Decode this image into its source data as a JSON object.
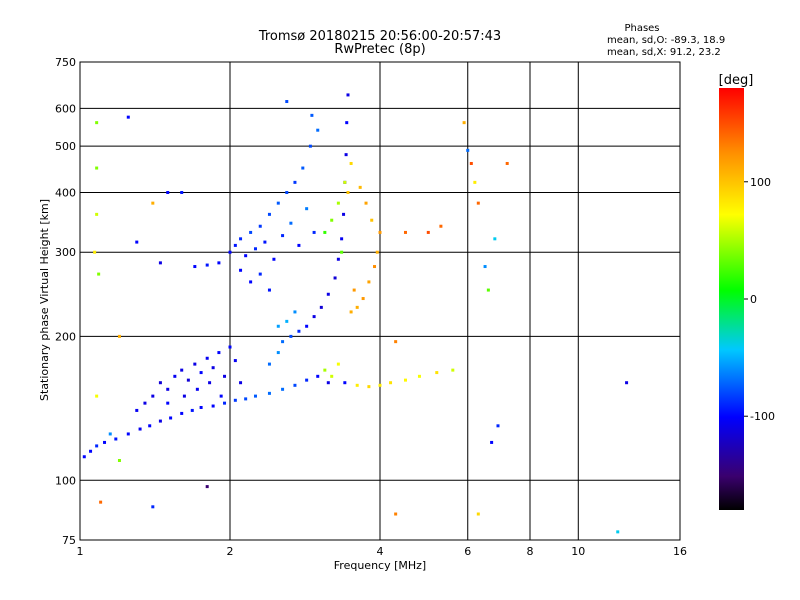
{
  "chart_data": {
    "type": "scatter",
    "title": "Tromsø 20180215 20:56:00-20:57:43",
    "subtitle": "RwPretec (8p)",
    "xlabel": "Frequency [MHz]",
    "ylabel": "Stationary phase Virtual Height [km]",
    "x_scale": "log",
    "y_scale": "log",
    "xlim": [
      1,
      16
    ],
    "ylim": [
      75,
      750
    ],
    "x_ticks": [
      1,
      2,
      4,
      6,
      8,
      10,
      16
    ],
    "y_ticks": [
      75,
      100,
      200,
      300,
      400,
      500,
      600,
      750
    ],
    "x_grid": [
      2,
      4,
      6,
      8,
      10
    ],
    "y_grid": [
      100,
      200,
      300,
      400,
      500,
      600
    ],
    "grid": true,
    "stats": {
      "title": "Phases",
      "line_o": "mean, sd,O: -89.3, 18.9",
      "line_x": "mean, sd,X:  91.2, 23.2"
    },
    "colorbar": {
      "label": "[deg]",
      "ticks": [
        100,
        0,
        -100
      ],
      "range": [
        -180,
        180
      ],
      "colormap": "rainbow"
    },
    "points": [
      {
        "f": 1.02,
        "h": 112,
        "phase": -100
      },
      {
        "f": 1.05,
        "h": 115,
        "phase": -100
      },
      {
        "f": 1.08,
        "h": 118,
        "phase": -90
      },
      {
        "f": 1.12,
        "h": 120,
        "phase": -100
      },
      {
        "f": 1.18,
        "h": 122,
        "phase": -95
      },
      {
        "f": 1.25,
        "h": 125,
        "phase": -100
      },
      {
        "f": 1.32,
        "h": 128,
        "phase": -105
      },
      {
        "f": 1.38,
        "h": 130,
        "phase": -100
      },
      {
        "f": 1.45,
        "h": 133,
        "phase": -110
      },
      {
        "f": 1.52,
        "h": 135,
        "phase": -100
      },
      {
        "f": 1.6,
        "h": 138,
        "phase": -100
      },
      {
        "f": 1.68,
        "h": 140,
        "phase": -95
      },
      {
        "f": 1.75,
        "h": 142,
        "phase": -100
      },
      {
        "f": 1.85,
        "h": 143,
        "phase": -100
      },
      {
        "f": 1.95,
        "h": 145,
        "phase": -90
      },
      {
        "f": 2.05,
        "h": 147,
        "phase": -85
      },
      {
        "f": 2.15,
        "h": 148,
        "phase": -80
      },
      {
        "f": 2.25,
        "h": 150,
        "phase": -75
      },
      {
        "f": 2.4,
        "h": 152,
        "phase": -70
      },
      {
        "f": 2.55,
        "h": 155,
        "phase": -70
      },
      {
        "f": 2.7,
        "h": 158,
        "phase": -80
      },
      {
        "f": 2.85,
        "h": 162,
        "phase": -90
      },
      {
        "f": 3.0,
        "h": 165,
        "phase": -100
      },
      {
        "f": 3.15,
        "h": 160,
        "phase": -110
      },
      {
        "f": 1.4,
        "h": 150,
        "phase": -110
      },
      {
        "f": 1.45,
        "h": 160,
        "phase": -115
      },
      {
        "f": 1.5,
        "h": 155,
        "phase": -110
      },
      {
        "f": 1.55,
        "h": 165,
        "phase": -105
      },
      {
        "f": 1.6,
        "h": 170,
        "phase": -110
      },
      {
        "f": 1.65,
        "h": 162,
        "phase": -115
      },
      {
        "f": 1.7,
        "h": 175,
        "phase": -110
      },
      {
        "f": 1.75,
        "h": 168,
        "phase": -100
      },
      {
        "f": 1.8,
        "h": 180,
        "phase": -105
      },
      {
        "f": 1.85,
        "h": 172,
        "phase": -110
      },
      {
        "f": 1.9,
        "h": 185,
        "phase": -100
      },
      {
        "f": 1.95,
        "h": 165,
        "phase": -110
      },
      {
        "f": 2.0,
        "h": 190,
        "phase": -100
      },
      {
        "f": 2.05,
        "h": 178,
        "phase": -105
      },
      {
        "f": 2.1,
        "h": 160,
        "phase": -110
      },
      {
        "f": 1.35,
        "h": 145,
        "phase": -110
      },
      {
        "f": 1.3,
        "h": 140,
        "phase": -105
      },
      {
        "f": 1.5,
        "h": 145,
        "phase": -100
      },
      {
        "f": 1.62,
        "h": 150,
        "phase": -110
      },
      {
        "f": 1.72,
        "h": 155,
        "phase": -105
      },
      {
        "f": 1.82,
        "h": 160,
        "phase": -110
      },
      {
        "f": 1.92,
        "h": 150,
        "phase": -100
      },
      {
        "f": 2.4,
        "h": 175,
        "phase": -70
      },
      {
        "f": 2.5,
        "h": 185,
        "phase": -60
      },
      {
        "f": 2.55,
        "h": 195,
        "phase": -70
      },
      {
        "f": 2.65,
        "h": 200,
        "phase": -80
      },
      {
        "f": 2.75,
        "h": 205,
        "phase": -90
      },
      {
        "f": 2.85,
        "h": 210,
        "phase": -100
      },
      {
        "f": 2.95,
        "h": 220,
        "phase": -110
      },
      {
        "f": 3.05,
        "h": 230,
        "phase": -115
      },
      {
        "f": 3.15,
        "h": 245,
        "phase": -110
      },
      {
        "f": 3.25,
        "h": 265,
        "phase": -115
      },
      {
        "f": 3.3,
        "h": 290,
        "phase": -110
      },
      {
        "f": 3.35,
        "h": 320,
        "phase": -105
      },
      {
        "f": 3.38,
        "h": 360,
        "phase": -110
      },
      {
        "f": 3.4,
        "h": 420,
        "phase": -100
      },
      {
        "f": 3.42,
        "h": 480,
        "phase": -110
      },
      {
        "f": 3.43,
        "h": 560,
        "phase": -100
      },
      {
        "f": 3.45,
        "h": 640,
        "phase": -110
      },
      {
        "f": 2.6,
        "h": 215,
        "phase": -50
      },
      {
        "f": 2.7,
        "h": 225,
        "phase": -60
      },
      {
        "f": 2.5,
        "h": 210,
        "phase": -55
      },
      {
        "f": 2.0,
        "h": 300,
        "phase": -100
      },
      {
        "f": 2.05,
        "h": 310,
        "phase": -95
      },
      {
        "f": 2.1,
        "h": 320,
        "phase": -90
      },
      {
        "f": 2.15,
        "h": 295,
        "phase": -100
      },
      {
        "f": 2.2,
        "h": 330,
        "phase": -80
      },
      {
        "f": 2.25,
        "h": 305,
        "phase": -90
      },
      {
        "f": 2.3,
        "h": 340,
        "phase": -85
      },
      {
        "f": 2.35,
        "h": 315,
        "phase": -95
      },
      {
        "f": 2.4,
        "h": 360,
        "phase": -80
      },
      {
        "f": 2.45,
        "h": 290,
        "phase": -100
      },
      {
        "f": 2.5,
        "h": 380,
        "phase": -75
      },
      {
        "f": 2.55,
        "h": 325,
        "phase": -90
      },
      {
        "f": 2.6,
        "h": 400,
        "phase": -80
      },
      {
        "f": 2.65,
        "h": 345,
        "phase": -70
      },
      {
        "f": 2.7,
        "h": 420,
        "phase": -85
      },
      {
        "f": 2.75,
        "h": 310,
        "phase": -100
      },
      {
        "f": 2.8,
        "h": 450,
        "phase": -75
      },
      {
        "f": 2.85,
        "h": 370,
        "phase": -65
      },
      {
        "f": 2.9,
        "h": 500,
        "phase": -80
      },
      {
        "f": 2.95,
        "h": 330,
        "phase": -90
      },
      {
        "f": 3.0,
        "h": 540,
        "phase": -70
      },
      {
        "f": 2.92,
        "h": 580,
        "phase": -75
      },
      {
        "f": 2.6,
        "h": 620,
        "phase": -80
      },
      {
        "f": 2.3,
        "h": 270,
        "phase": -90
      },
      {
        "f": 2.2,
        "h": 260,
        "phase": -100
      },
      {
        "f": 2.4,
        "h": 250,
        "phase": -95
      },
      {
        "f": 2.1,
        "h": 275,
        "phase": -100
      },
      {
        "f": 1.7,
        "h": 280,
        "phase": -100
      },
      {
        "f": 1.8,
        "h": 282,
        "phase": -95
      },
      {
        "f": 1.9,
        "h": 285,
        "phase": -100
      },
      {
        "f": 3.1,
        "h": 330,
        "phase": 20
      },
      {
        "f": 3.2,
        "h": 350,
        "phase": 40
      },
      {
        "f": 3.3,
        "h": 380,
        "phase": 50
      },
      {
        "f": 3.4,
        "h": 420,
        "phase": 60
      },
      {
        "f": 3.5,
        "h": 460,
        "phase": 90
      },
      {
        "f": 3.45,
        "h": 400,
        "phase": 100
      },
      {
        "f": 3.35,
        "h": 300,
        "phase": 30
      },
      {
        "f": 3.6,
        "h": 230,
        "phase": 110
      },
      {
        "f": 3.7,
        "h": 240,
        "phase": 120
      },
      {
        "f": 3.8,
        "h": 260,
        "phase": 115
      },
      {
        "f": 3.9,
        "h": 280,
        "phase": 125
      },
      {
        "f": 3.95,
        "h": 300,
        "phase": 110
      },
      {
        "f": 4.0,
        "h": 330,
        "phase": 120
      },
      {
        "f": 3.85,
        "h": 350,
        "phase": 100
      },
      {
        "f": 3.75,
        "h": 380,
        "phase": 115
      },
      {
        "f": 3.65,
        "h": 410,
        "phase": 105
      },
      {
        "f": 3.5,
        "h": 225,
        "phase": 110
      },
      {
        "f": 3.55,
        "h": 250,
        "phase": 120
      },
      {
        "f": 3.2,
        "h": 165,
        "phase": 60
      },
      {
        "f": 3.4,
        "h": 160,
        "phase": -100
      },
      {
        "f": 3.6,
        "h": 158,
        "phase": 80
      },
      {
        "f": 3.8,
        "h": 157,
        "phase": 90
      },
      {
        "f": 4.0,
        "h": 158,
        "phase": 80
      },
      {
        "f": 4.2,
        "h": 160,
        "phase": 85
      },
      {
        "f": 4.5,
        "h": 162,
        "phase": 75
      },
      {
        "f": 4.8,
        "h": 165,
        "phase": 70
      },
      {
        "f": 5.2,
        "h": 168,
        "phase": 85
      },
      {
        "f": 5.6,
        "h": 170,
        "phase": 60
      },
      {
        "f": 3.1,
        "h": 170,
        "phase": 50
      },
      {
        "f": 3.3,
        "h": 175,
        "phase": 70
      },
      {
        "f": 4.3,
        "h": 195,
        "phase": 130
      },
      {
        "f": 4.5,
        "h": 330,
        "phase": 140
      },
      {
        "f": 5.0,
        "h": 330,
        "phase": 150
      },
      {
        "f": 5.3,
        "h": 340,
        "phase": 140
      },
      {
        "f": 1.08,
        "h": 560,
        "phase": 40
      },
      {
        "f": 1.08,
        "h": 450,
        "phase": 40
      },
      {
        "f": 1.08,
        "h": 360,
        "phase": 60
      },
      {
        "f": 1.07,
        "h": 300,
        "phase": 80
      },
      {
        "f": 1.09,
        "h": 270,
        "phase": 40
      },
      {
        "f": 1.08,
        "h": 150,
        "phase": 70
      },
      {
        "f": 1.2,
        "h": 200,
        "phase": 110
      },
      {
        "f": 1.1,
        "h": 90,
        "phase": 140
      },
      {
        "f": 6.0,
        "h": 490,
        "phase": -70
      },
      {
        "f": 6.1,
        "h": 460,
        "phase": 150
      },
      {
        "f": 6.2,
        "h": 420,
        "phase": 80
      },
      {
        "f": 6.3,
        "h": 380,
        "phase": 140
      },
      {
        "f": 6.5,
        "h": 280,
        "phase": -60
      },
      {
        "f": 6.6,
        "h": 250,
        "phase": 30
      },
      {
        "f": 6.8,
        "h": 320,
        "phase": -40
      },
      {
        "f": 7.2,
        "h": 460,
        "phase": 140
      },
      {
        "f": 6.9,
        "h": 130,
        "phase": -90
      },
      {
        "f": 6.7,
        "h": 120,
        "phase": -100
      },
      {
        "f": 6.3,
        "h": 85,
        "phase": 90
      },
      {
        "f": 5.9,
        "h": 560,
        "phase": 110
      },
      {
        "f": 12.5,
        "h": 160,
        "phase": -110
      },
      {
        "f": 12.0,
        "h": 78,
        "phase": -40
      },
      {
        "f": 1.25,
        "h": 575,
        "phase": -100
      },
      {
        "f": 1.3,
        "h": 315,
        "phase": -100
      },
      {
        "f": 1.4,
        "h": 380,
        "phase": 110
      },
      {
        "f": 1.5,
        "h": 400,
        "phase": -100
      },
      {
        "f": 1.6,
        "h": 400,
        "phase": -95
      },
      {
        "f": 1.45,
        "h": 285,
        "phase": -110
      },
      {
        "f": 1.4,
        "h": 88,
        "phase": -90
      },
      {
        "f": 1.8,
        "h": 97,
        "phase": -150
      },
      {
        "f": 4.3,
        "h": 85,
        "phase": 130
      },
      {
        "f": 1.2,
        "h": 110,
        "phase": 40
      },
      {
        "f": 1.15,
        "h": 125,
        "phase": -60
      }
    ]
  }
}
